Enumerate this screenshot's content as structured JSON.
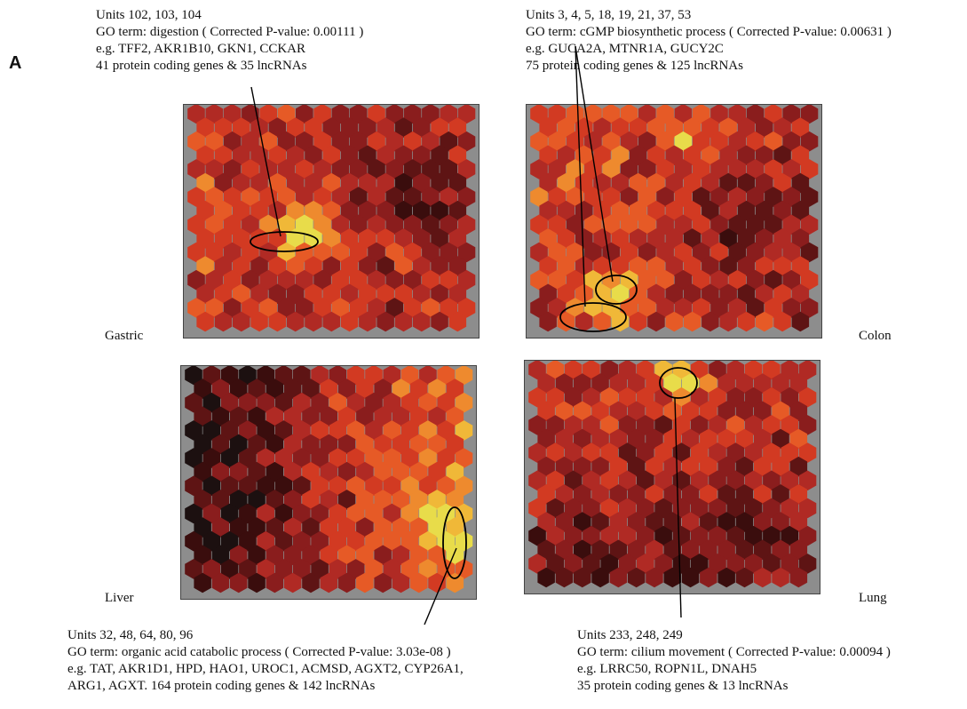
{
  "panel_label": "A",
  "annotations": {
    "gastric": {
      "units": "Units 102, 103, 104",
      "go_term": "GO term: digestion ( Corrected P-value: 0.00111 )",
      "genes": "e.g. TFF2, AKR1B10, GKN1, CCKAR",
      "counts": "41 protein coding genes & 35 lncRNAs"
    },
    "colon": {
      "units": "Units 3, 4, 5, 18, 19, 21, 37, 53",
      "go_term": "GO term: cGMP biosynthetic process ( Corrected P-value: 0.00631 )",
      "genes": "e.g. GUCA2A, MTNR1A, GUCY2C",
      "counts": "75 protein coding genes & 125 lncRNAs"
    },
    "liver": {
      "units": "Units 32, 48, 64, 80, 96",
      "go_term": "GO term: organic acid catabolic process ( Corrected P-value: 3.03e-08 )",
      "genes": "e.g. TAT, AKR1D1, HPD, HAO1, UROC1, ACMSD, AGXT2, CYP26A1,",
      "counts": "ARG1, AGXT. 164 protein coding genes & 142 lncRNAs"
    },
    "lung": {
      "units": "Units 233, 248, 249",
      "go_term": "GO term: cilium movement ( Corrected P-value: 0.00094 )",
      "genes": "e.g. LRRC50, ROPN1L, DNAH5",
      "counts": "35 protein coding genes & 13 lncRNAs"
    }
  },
  "tissues": {
    "gastric": "Gastric",
    "colon": "Colon",
    "liver": "Liver",
    "lung": "Lung"
  },
  "colors": {
    "background": "#8d8d8d",
    "scale": [
      "#1c1010",
      "#3a0d0d",
      "#5e1414",
      "#8a1d1d",
      "#b02a24",
      "#d23a22",
      "#e65a26",
      "#ee8a2e",
      "#f0b838",
      "#e8dc4a"
    ]
  }
}
